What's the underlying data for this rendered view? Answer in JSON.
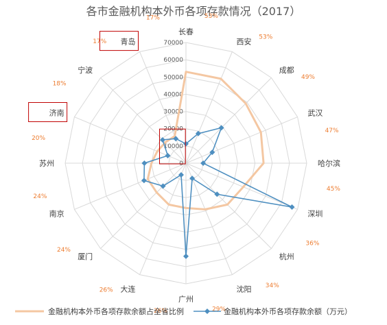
{
  "chart_data": {
    "type": "radar",
    "title": "各市金融机构本外币各项存款情况（2017）",
    "categories": [
      "长春",
      "西安",
      "成都",
      "武汉",
      "哈尔滨",
      "深圳",
      "杭州",
      "沈阳",
      "广州",
      "大连",
      "厦门",
      "南京",
      "苏州",
      "济南",
      "宁波",
      "青岛"
    ],
    "percent_labels": [
      "53%",
      "53%",
      "49%",
      "47%",
      "45%",
      "36%",
      "34%",
      "29%",
      "26%",
      "26%",
      "24%",
      "24%",
      "20%",
      "18%",
      "17%",
      "17%"
    ],
    "r_ticks": [
      "0",
      "10000",
      "20000",
      "30000",
      "40000",
      "50000",
      "60000",
      "70000"
    ],
    "r_range": [
      0,
      70000
    ],
    "grid": true,
    "legend_position": "bottom",
    "highlighted_categories": [
      "青岛",
      "济南"
    ],
    "series": [
      {
        "name": "金融机构本外币各项存款余额占全省比例",
        "axis": "percent",
        "color": "#f4c7a2",
        "values": [
          0.53,
          0.53,
          0.49,
          0.47,
          0.45,
          0.36,
          0.34,
          0.29,
          0.26,
          0.26,
          0.24,
          0.24,
          0.2,
          0.18,
          0.17,
          0.17
        ]
      },
      {
        "name": "金融机构本外币各项存款余额（万元）",
        "axis": "value",
        "color": "#4e8fc0",
        "values": [
          11200,
          18600,
          29000,
          16500,
          10000,
          66500,
          25500,
          9500,
          54000,
          7300,
          18800,
          26300,
          24100,
          11400,
          19100,
          15400
        ]
      }
    ]
  }
}
